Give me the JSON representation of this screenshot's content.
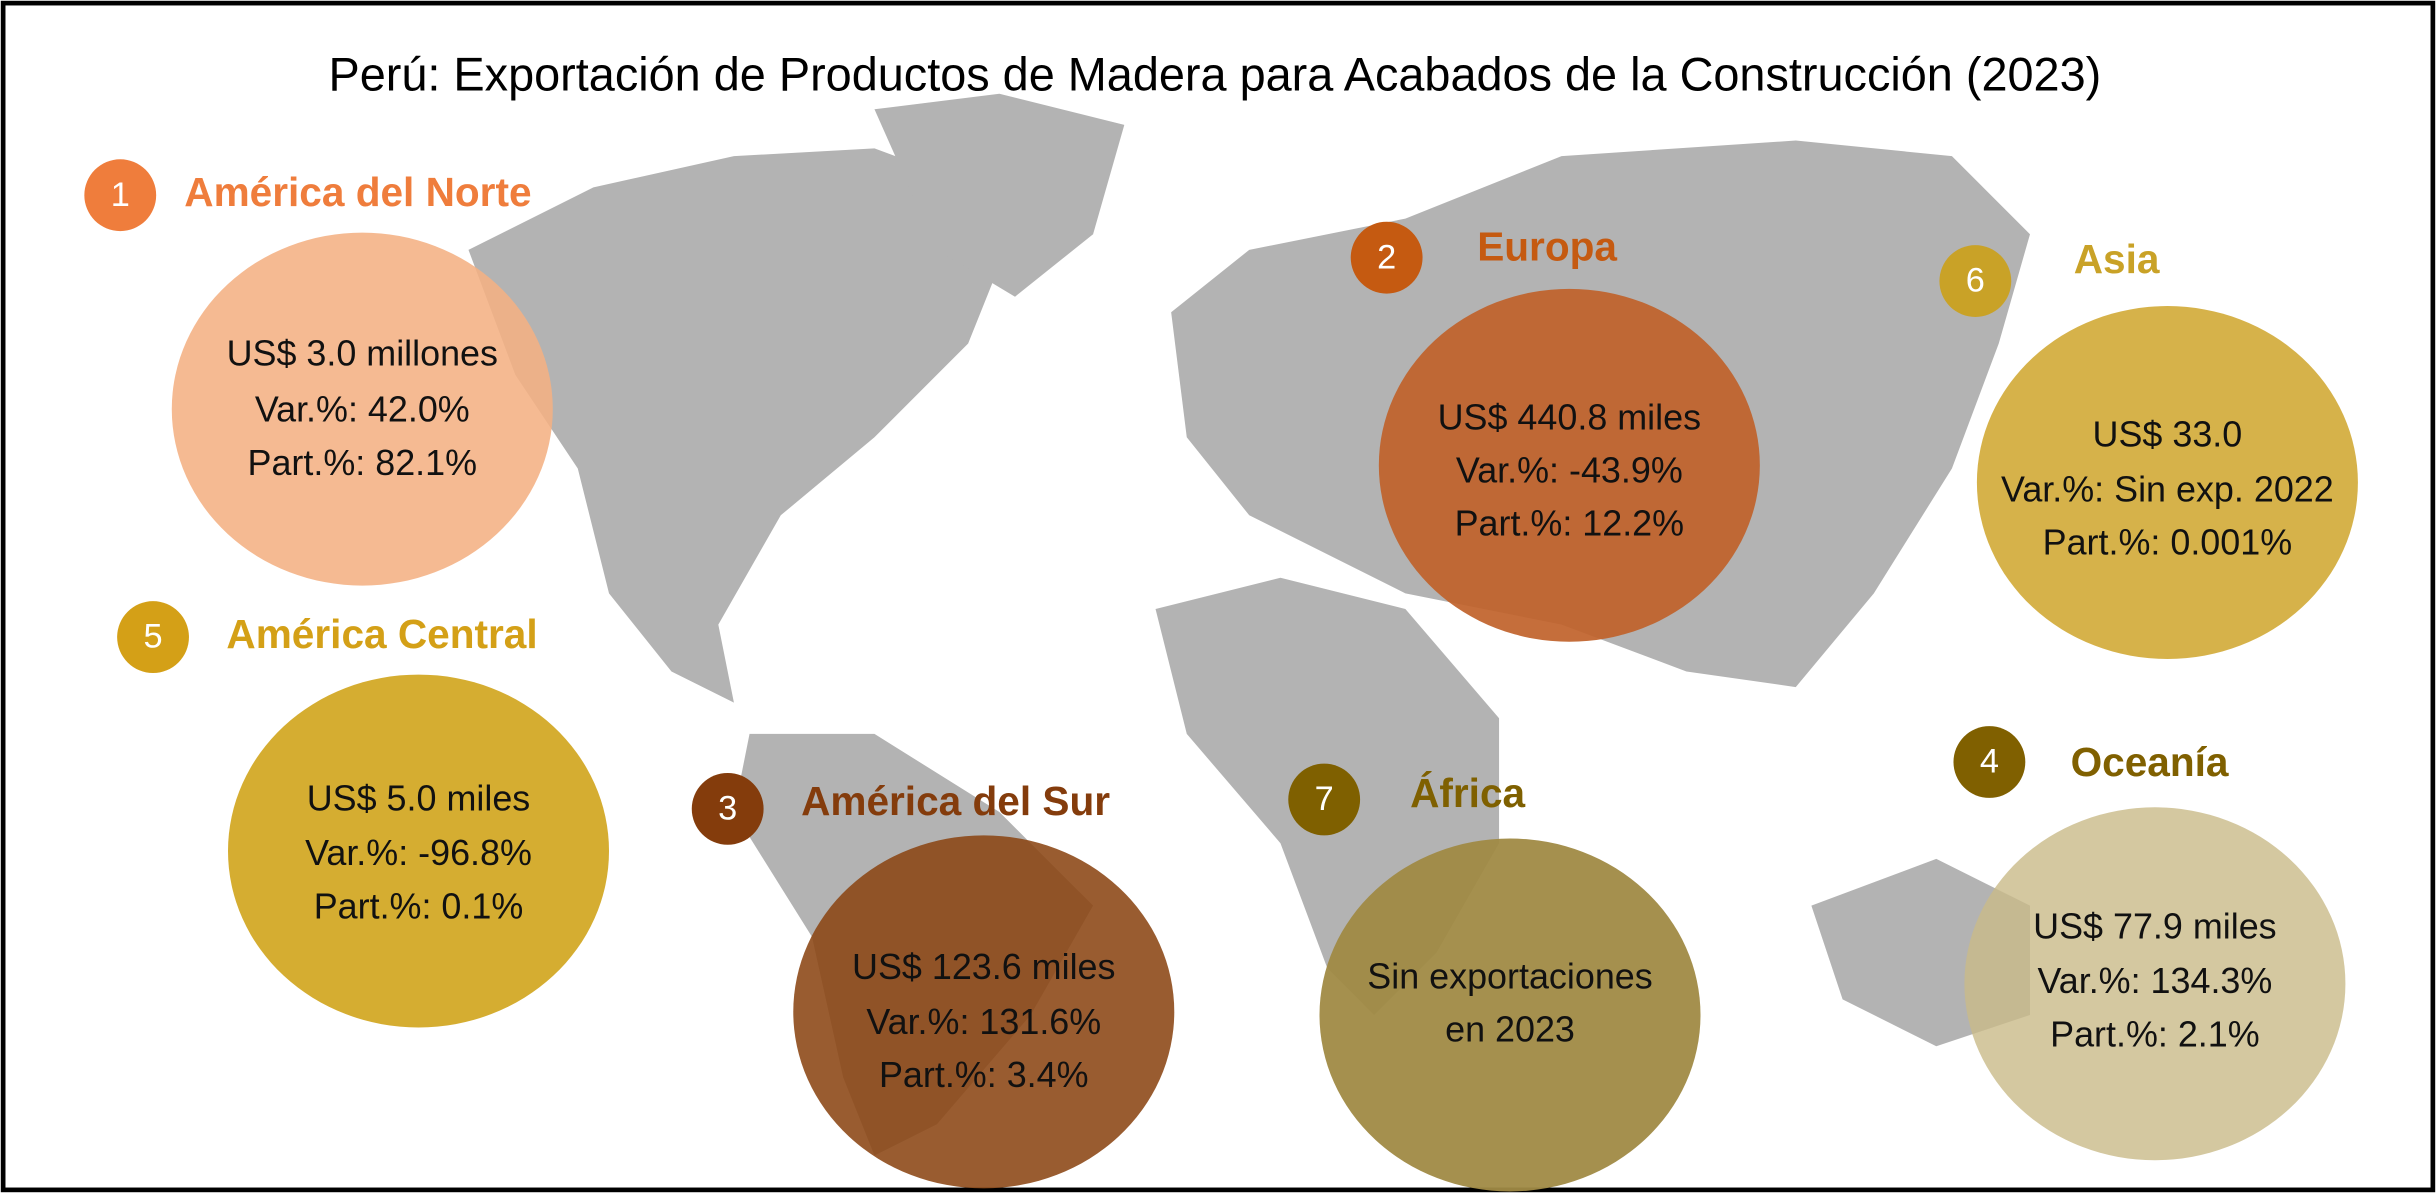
{
  "title": "Perú: Exportación de Productos de Madera para Acabados de la Construcción (2023)",
  "regions": [
    {
      "number": "1",
      "name": "América del Norte",
      "lines": [
        "US$ 3.0 millones",
        "Var.%: 42.0%",
        "Part.%: 82.1%"
      ]
    },
    {
      "number": "2",
      "name": "Europa",
      "lines": [
        "US$ 440.8 miles",
        "Var.%: -43.9%",
        "Part.%: 12.2%"
      ]
    },
    {
      "number": "6",
      "name": "Asia",
      "lines": [
        "US$ 33.0",
        "Var.%: Sin exp. 2022",
        "Part.%: 0.001%"
      ]
    },
    {
      "number": "5",
      "name": "América Central",
      "lines": [
        "US$ 5.0 miles",
        "Var.%: -96.8%",
        "Part.%: 0.1%"
      ]
    },
    {
      "number": "3",
      "name": "América del Sur",
      "lines": [
        "US$ 123.6 miles",
        "Var.%: 131.6%",
        "Part.%: 3.4%"
      ]
    },
    {
      "number": "7",
      "name": "África",
      "lines": [
        "Sin exportaciones",
        "en 2023"
      ]
    },
    {
      "number": "4",
      "name": "Oceanía",
      "lines": [
        "US$ 77.9 miles",
        "Var.%: 134.3%",
        "Part.%: 2.1%"
      ]
    }
  ]
}
